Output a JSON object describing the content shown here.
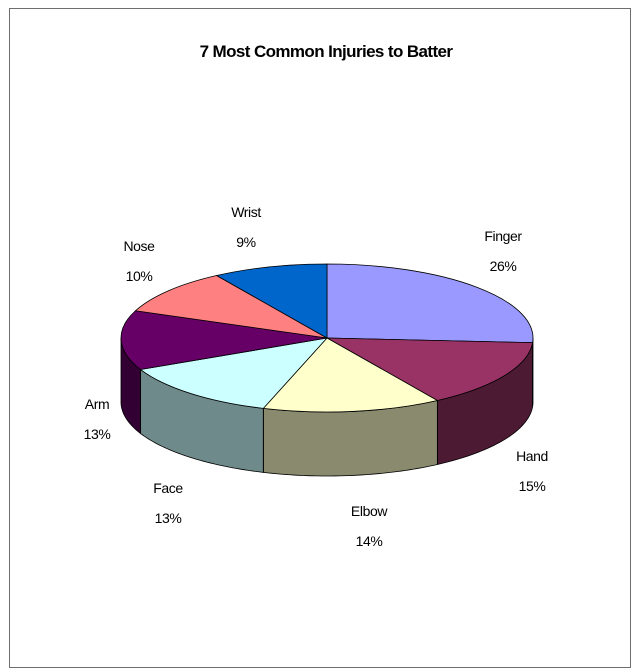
{
  "chart_data": {
    "type": "pie",
    "title": "7 Most Common Injuries to Batter",
    "slices": [
      {
        "label": "Finger",
        "value": 26,
        "value_label": "26%",
        "color": "#9999ff",
        "side_color": "#6262a8"
      },
      {
        "label": "Hand",
        "value": 15,
        "value_label": "15%",
        "color": "#993366",
        "side_color": "#4d1a33"
      },
      {
        "label": "Elbow",
        "value": 14,
        "value_label": "14%",
        "color": "#ffffcc",
        "side_color": "#8a8a6e"
      },
      {
        "label": "Face",
        "value": 13,
        "value_label": "13%",
        "color": "#ccffff",
        "side_color": "#6e8a8a"
      },
      {
        "label": "Arm",
        "value": 13,
        "value_label": "13%",
        "color": "#660066",
        "side_color": "#330033"
      },
      {
        "label": "Nose",
        "value": 10,
        "value_label": "10%",
        "color": "#ff8080",
        "side_color": "#8a4545"
      },
      {
        "label": "Wrist",
        "value": 9,
        "value_label": "9%",
        "color": "#0066cc",
        "side_color": "#00336b"
      }
    ],
    "legend": "none",
    "style": "3d-pie"
  }
}
